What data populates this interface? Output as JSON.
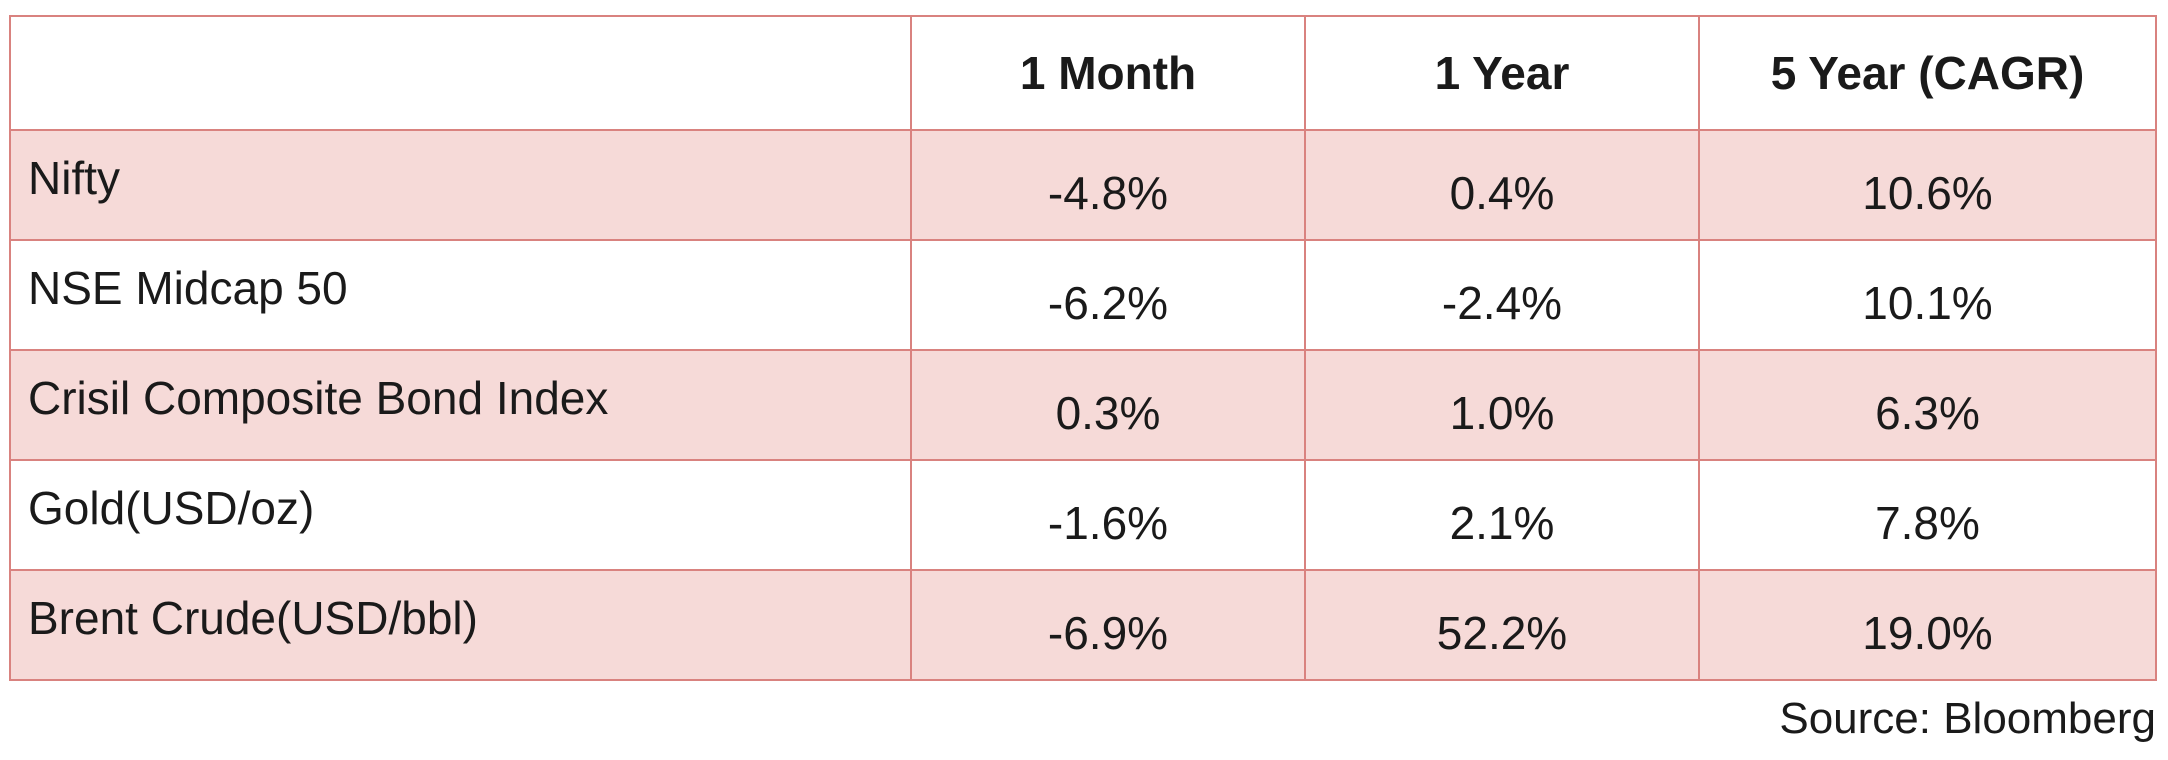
{
  "table": {
    "headers": [
      "",
      "1 Month",
      "1 Year",
      "5 Year (CAGR)"
    ],
    "rows": [
      {
        "label": "Nifty",
        "one_month": "-4.8%",
        "one_year": "0.4%",
        "five_year": "10.6%"
      },
      {
        "label": "NSE Midcap 50",
        "one_month": "-6.2%",
        "one_year": "-2.4%",
        "five_year": "10.1%"
      },
      {
        "label": "Crisil Composite Bond Index",
        "one_month": "0.3%",
        "one_year": "1.0%",
        "five_year": "6.3%"
      },
      {
        "label": "Gold(USD/oz)",
        "one_month": "-1.6%",
        "one_year": "2.1%",
        "five_year": "7.8%"
      },
      {
        "label": "Brent Crude(USD/bbl)",
        "one_month": "-6.9%",
        "one_year": "52.2%",
        "five_year": "19.0%"
      }
    ]
  },
  "source": "Source: Bloomberg",
  "colors": {
    "border": "#d9827f",
    "shaded_row": "#f6dad8",
    "plain_row": "#ffffff"
  }
}
